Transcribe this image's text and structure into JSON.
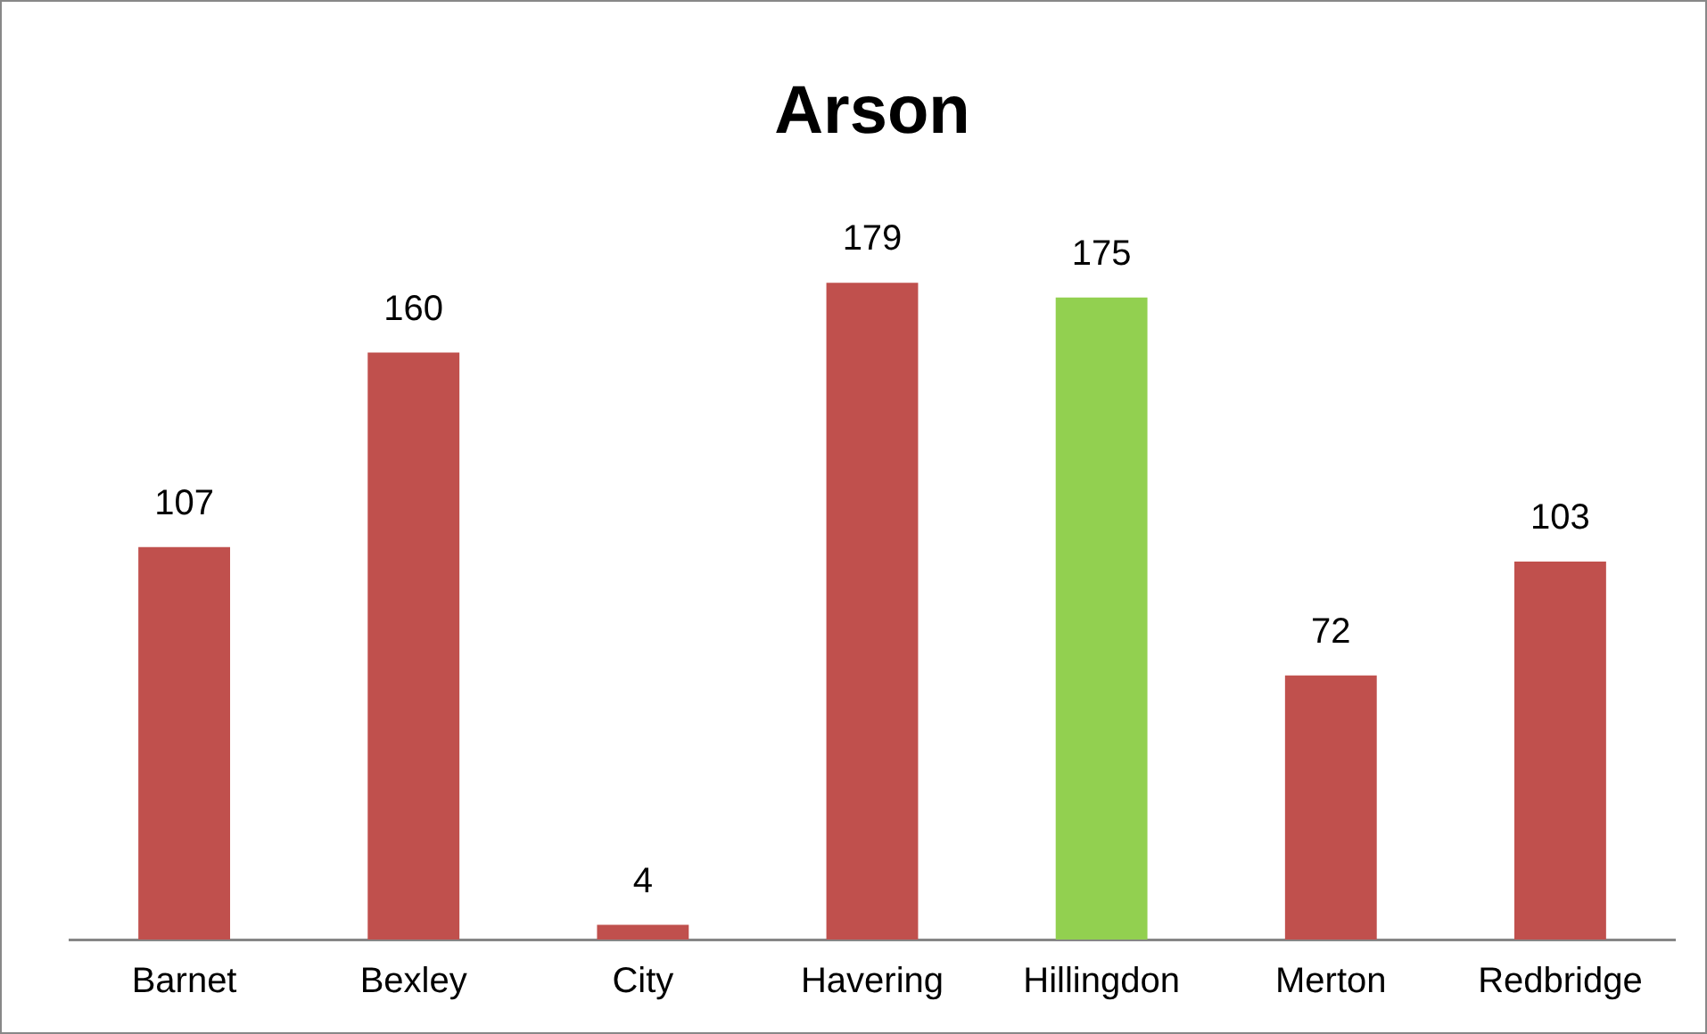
{
  "chart_data": {
    "type": "bar",
    "title": "Arson",
    "categories": [
      "Barnet",
      "Bexley",
      "City",
      "Havering",
      "Hillingdon",
      "Merton",
      "Redbridge"
    ],
    "values": [
      107,
      160,
      4,
      179,
      175,
      72,
      103
    ],
    "colors": [
      "#c0504d",
      "#c0504d",
      "#c0504d",
      "#c0504d",
      "#92d050",
      "#c0504d",
      "#c0504d"
    ],
    "data_labels": true,
    "grid": false,
    "legend": false
  }
}
